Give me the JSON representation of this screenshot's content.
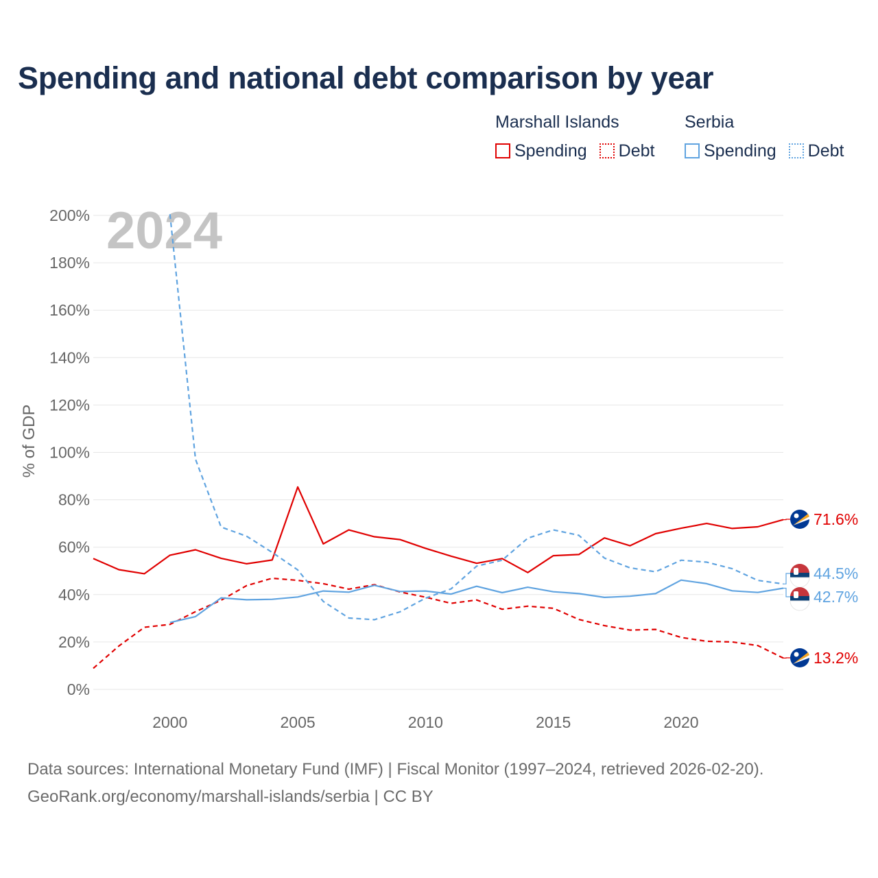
{
  "title": "Spending and national debt comparison by year",
  "legend": {
    "groups": [
      {
        "name": "Marshall Islands",
        "items": [
          "Spending",
          "Debt"
        ]
      },
      {
        "name": "Serbia",
        "items": [
          "Spending",
          "Debt"
        ]
      }
    ]
  },
  "year_label": "2024",
  "source_line1": "Data sources: International Monetary Fund (IMF) | Fiscal Monitor (1997–2024, retrieved 2026-02-20).",
  "source_line2": "GeoRank.org/economy/marshall-islands/serbia | CC BY",
  "colors": {
    "marshall": "#e00000",
    "serbia": "#5fa3e0",
    "grid": "#e6e6e6",
    "axis_text": "#666666",
    "year_watermark": "#c4c4c4"
  },
  "chart_data": {
    "type": "line",
    "ylabel": "% of GDP",
    "ylim": [
      0,
      200
    ],
    "xlim": [
      1997,
      2024
    ],
    "yticks": [
      0,
      20,
      40,
      60,
      80,
      100,
      120,
      140,
      160,
      180,
      200
    ],
    "ytick_labels": [
      "0%",
      "20%",
      "40%",
      "60%",
      "80%",
      "100%",
      "120%",
      "140%",
      "160%",
      "180%",
      "200%"
    ],
    "xticks": [
      2000,
      2005,
      2010,
      2015,
      2020
    ],
    "xtick_labels": [
      "2000",
      "2005",
      "2010",
      "2015",
      "2020"
    ],
    "series": [
      {
        "name": "Marshall Islands Spending",
        "country": "Marshall Islands",
        "metric": "Spending",
        "color": "#e00000",
        "style": "solid",
        "end_label": "71.6%",
        "flag": "marshall-islands",
        "points": [
          [
            1997,
            55.2
          ],
          [
            1998,
            50.5
          ],
          [
            1999,
            48.8
          ],
          [
            2000,
            56.6
          ],
          [
            2001,
            58.9
          ],
          [
            2002,
            55.3
          ],
          [
            2003,
            53
          ],
          [
            2004,
            54.6
          ],
          [
            2005,
            85.4
          ],
          [
            2006,
            61.4
          ],
          [
            2007,
            67.3
          ],
          [
            2008,
            64.4
          ],
          [
            2009,
            63.2
          ],
          [
            2010,
            59.5
          ],
          [
            2011,
            56.2
          ],
          [
            2012,
            53.2
          ],
          [
            2013,
            55.2
          ],
          [
            2014,
            49.3
          ],
          [
            2015,
            56.4
          ],
          [
            2016,
            56.9
          ],
          [
            2017,
            63.9
          ],
          [
            2018,
            60.6
          ],
          [
            2019,
            65.7
          ],
          [
            2020,
            68
          ],
          [
            2021,
            70
          ],
          [
            2022,
            67.9
          ],
          [
            2023,
            68.6
          ],
          [
            2024,
            71.6
          ]
        ]
      },
      {
        "name": "Marshall Islands Debt",
        "country": "Marshall Islands",
        "metric": "Debt",
        "color": "#e00000",
        "style": "dashed",
        "end_label": "13.2%",
        "flag": "marshall-islands",
        "points": [
          [
            1997,
            8.9
          ],
          [
            1998,
            18.3
          ],
          [
            1999,
            26.2
          ],
          [
            2000,
            27.4
          ],
          [
            2001,
            32.8
          ],
          [
            2002,
            37.6
          ],
          [
            2003,
            43.8
          ],
          [
            2004,
            46.9
          ],
          [
            2005,
            46
          ],
          [
            2006,
            44.6
          ],
          [
            2007,
            42.3
          ],
          [
            2008,
            44.2
          ],
          [
            2009,
            41.1
          ],
          [
            2010,
            38.9
          ],
          [
            2011,
            36.3
          ],
          [
            2012,
            37.7
          ],
          [
            2013,
            33.8
          ],
          [
            2014,
            35.1
          ],
          [
            2015,
            34.2
          ],
          [
            2016,
            29.5
          ],
          [
            2017,
            26.9
          ],
          [
            2018,
            25
          ],
          [
            2019,
            25.3
          ],
          [
            2020,
            21.9
          ],
          [
            2021,
            20.3
          ],
          [
            2022,
            20
          ],
          [
            2023,
            18.5
          ],
          [
            2024,
            13.2
          ]
        ]
      },
      {
        "name": "Serbia Spending",
        "country": "Serbia",
        "metric": "Spending",
        "color": "#5fa3e0",
        "style": "solid",
        "end_label": "42.7%",
        "flag": "serbia",
        "points": [
          [
            2000,
            28.2
          ],
          [
            2001,
            30.7
          ],
          [
            2002,
            38.6
          ],
          [
            2003,
            37.8
          ],
          [
            2004,
            38
          ],
          [
            2005,
            39
          ],
          [
            2006,
            41.5
          ],
          [
            2007,
            41
          ],
          [
            2008,
            43.9
          ],
          [
            2009,
            41.3
          ],
          [
            2010,
            41.5
          ],
          [
            2011,
            40.2
          ],
          [
            2012,
            43.5
          ],
          [
            2013,
            40.8
          ],
          [
            2014,
            43.1
          ],
          [
            2015,
            41.2
          ],
          [
            2016,
            40.4
          ],
          [
            2017,
            38.8
          ],
          [
            2018,
            39.3
          ],
          [
            2019,
            40.4
          ],
          [
            2020,
            46.1
          ],
          [
            2021,
            44.6
          ],
          [
            2022,
            41.6
          ],
          [
            2023,
            40.9
          ],
          [
            2024,
            42.7
          ]
        ]
      },
      {
        "name": "Serbia Debt",
        "country": "Serbia",
        "metric": "Debt",
        "color": "#5fa3e0",
        "style": "dashed",
        "end_label": "44.5%",
        "flag": "serbia",
        "points": [
          [
            2000,
            200.5
          ],
          [
            2001,
            97.1
          ],
          [
            2002,
            68.5
          ],
          [
            2003,
            64.6
          ],
          [
            2004,
            57.8
          ],
          [
            2005,
            50.4
          ],
          [
            2006,
            37.1
          ],
          [
            2007,
            30.1
          ],
          [
            2008,
            29.4
          ],
          [
            2009,
            32.7
          ],
          [
            2010,
            38.5
          ],
          [
            2011,
            42.4
          ],
          [
            2012,
            52
          ],
          [
            2013,
            54.5
          ],
          [
            2014,
            63.8
          ],
          [
            2015,
            67.3
          ],
          [
            2016,
            65
          ],
          [
            2017,
            55.4
          ],
          [
            2018,
            51.3
          ],
          [
            2019,
            49.6
          ],
          [
            2020,
            54.5
          ],
          [
            2021,
            53.7
          ],
          [
            2022,
            50.9
          ],
          [
            2023,
            46
          ],
          [
            2024,
            44.5
          ]
        ]
      }
    ]
  }
}
